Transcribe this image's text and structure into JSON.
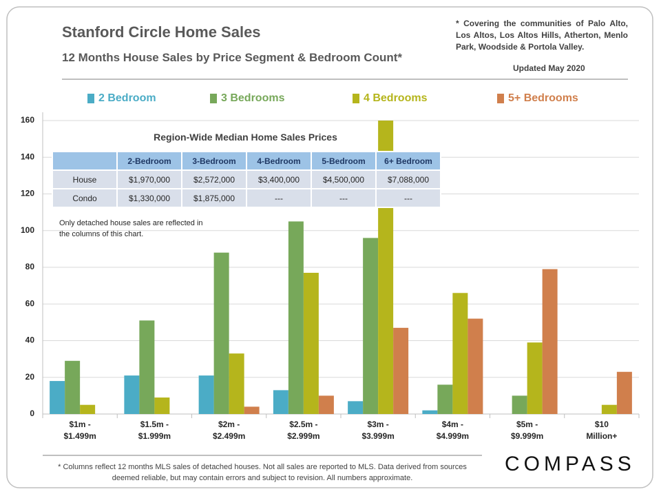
{
  "chart_data": {
    "type": "bar",
    "title": "Stanford Circle Home Sales",
    "subtitle": "12 Months House Sales by Price Segment & Bedroom Count*",
    "coverage_note": "* Covering the communities of Palo Alto, Los Altos, Los Altos Hills, Atherton, Menlo Park, Woodside & Portola Valley.",
    "updated": "Updated May 2020",
    "categories": [
      "$1m - $1.499m",
      "$1.5m - $1.999m",
      "$2m - $2.499m",
      "$2.5m - $2.999m",
      "$3m - $3.999m",
      "$4m - $4.999m",
      "$5m - $9.999m",
      "$10 Million+"
    ],
    "series": [
      {
        "name": "2 Bedroom",
        "color": "#4bacc6",
        "values": [
          18,
          21,
          21,
          13,
          7,
          2,
          null,
          null
        ]
      },
      {
        "name": "3 Bedrooms",
        "color": "#77a85a",
        "values": [
          29,
          51,
          88,
          105,
          96,
          16,
          10,
          null
        ]
      },
      {
        "name": "4 Bedrooms",
        "color": "#b5b51c",
        "values": [
          5,
          9,
          33,
          77,
          160,
          66,
          39,
          5
        ]
      },
      {
        "name": "5+ Bedrooms",
        "color": "#d07f4c",
        "values": [
          null,
          null,
          4,
          10,
          47,
          52,
          79,
          23
        ]
      }
    ],
    "ylim": [
      0,
      160
    ],
    "yticks": [
      0,
      20,
      40,
      60,
      80,
      100,
      120,
      140,
      160
    ],
    "grid": true,
    "table": {
      "title": "Region-Wide Median Home Sales Prices",
      "header": [
        "2-Bedroom",
        "3-Bedroom",
        "4-Bedroom",
        "5-Bedroom",
        "6+ Bedroom"
      ],
      "rows": [
        {
          "label": "House",
          "cells": [
            "$1,970,000",
            "$2,572,000",
            "$3,400,000",
            "$4,500,000",
            "$7,088,000"
          ]
        },
        {
          "label": "Condo",
          "cells": [
            "$1,330,000",
            "$1,875,000",
            "---",
            "---",
            "---"
          ]
        }
      ]
    },
    "chart_note": "Only detached house sales are reflected in the columns of this chart.",
    "footnote": "* Columns reflect 12 months MLS sales of detached houses. Not all sales are reported to MLS. Data derived from sources deemed reliable, but may contain errors and subject to revision. All numbers approximate.",
    "logo": "COMPASS"
  }
}
